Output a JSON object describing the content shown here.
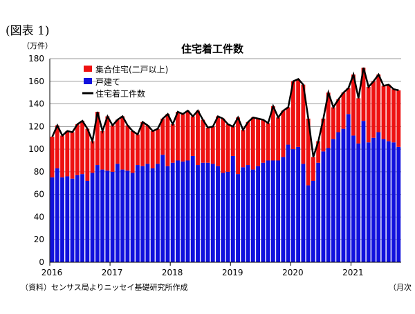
{
  "figure_label": "(図表 1)",
  "source": "（資料）センサス局よりニッセイ基礎研究所作成",
  "frequency_note": "（月次",
  "chart_data": {
    "type": "bar",
    "stacked": true,
    "title": "住宅着工件数",
    "ylabel": "（万件）",
    "ylim": [
      0,
      180
    ],
    "yticks": [
      0,
      20,
      40,
      60,
      80,
      100,
      120,
      140,
      160,
      180
    ],
    "xtick_labels": [
      "2016",
      "2017",
      "2018",
      "2019",
      "2020",
      "2021"
    ],
    "start": "2016-01",
    "grid": true,
    "legend_position": "top-left",
    "colors": {
      "multi": "#ee1111",
      "single": "#1111dd",
      "total": "#000000"
    },
    "series": [
      {
        "name": "戸建て",
        "values": [
          75,
          83,
          75,
          76,
          74,
          77,
          78,
          72,
          79,
          86,
          82,
          81,
          80,
          87,
          82,
          81,
          79,
          86,
          85,
          87,
          83,
          87,
          95,
          85,
          88,
          90,
          89,
          90,
          94,
          86,
          88,
          88,
          87,
          85,
          79,
          80,
          94,
          78,
          84,
          86,
          82,
          85,
          88,
          90,
          90,
          90,
          93,
          104,
          100,
          102,
          87,
          68,
          72,
          88,
          98,
          101,
          109,
          115,
          118,
          131,
          112,
          105,
          125,
          106,
          110,
          115,
          109,
          107,
          106,
          102
        ]
      },
      {
        "name": "集合住宅(二戸以上)",
        "type": "bar"
      },
      {
        "name": "住宅着工件数",
        "type": "line",
        "values": [
          111,
          121,
          112,
          116,
          115,
          122,
          125,
          118,
          107,
          133,
          116,
          129,
          121,
          126,
          129,
          121,
          116,
          113,
          124,
          121,
          116,
          118,
          127,
          131,
          122,
          133,
          131,
          134,
          129,
          134,
          126,
          119,
          120,
          129,
          127,
          122,
          120,
          128,
          117,
          124,
          128,
          127,
          126,
          123,
          138,
          128,
          134,
          137,
          160,
          162,
          157,
          127,
          93,
          107,
          127,
          150,
          137,
          144,
          150,
          154,
          166,
          145,
          172,
          155,
          160,
          166,
          156,
          157,
          153,
          152
        ]
      }
    ]
  }
}
